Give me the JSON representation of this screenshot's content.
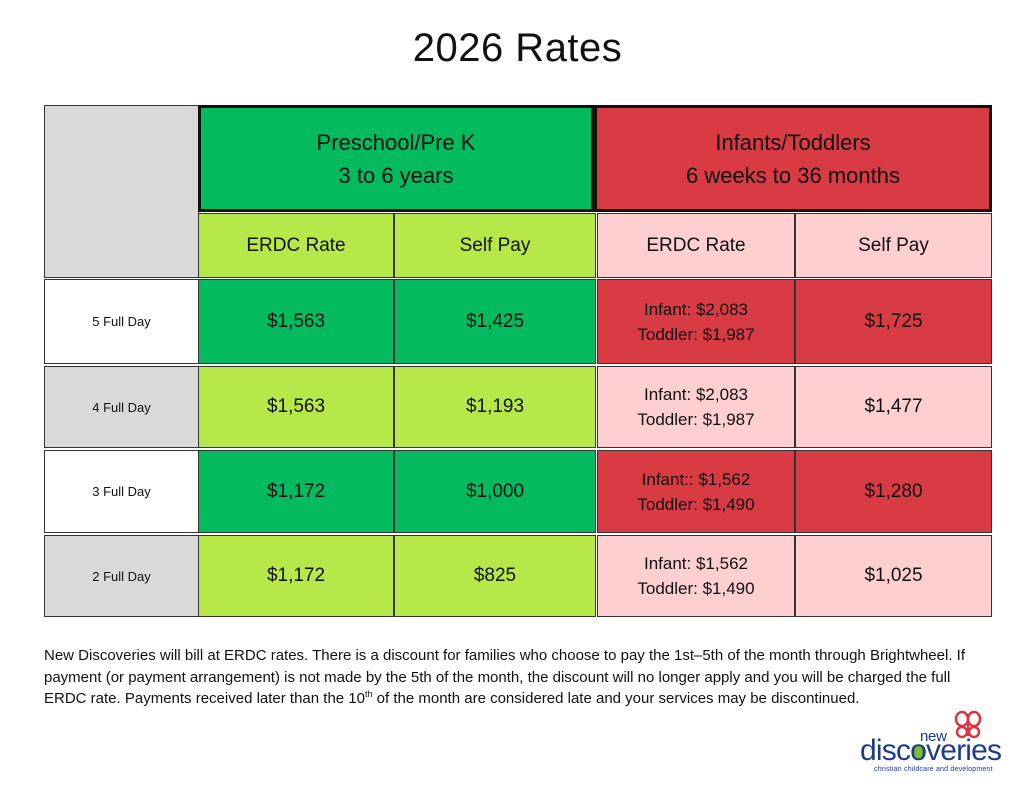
{
  "title": "2026 Rates",
  "groups": {
    "preschool": {
      "line1": "Preschool/Pre K",
      "line2": "3 to 6 years"
    },
    "infants": {
      "line1": "Infants/Toddlers",
      "line2": "6 weeks to 36 months"
    }
  },
  "subheaders": [
    "ERDC Rate",
    "Self Pay",
    "ERDC Rate",
    "Self Pay"
  ],
  "rows": [
    {
      "label": "5 Full Day",
      "pre_erdc": "$1,563",
      "pre_self": "$1,425",
      "inf_erdc_1": "Infant: $2,083",
      "inf_erdc_2": "Toddler: $1,987",
      "inf_self": "$1,725"
    },
    {
      "label": "4 Full Day",
      "pre_erdc": "$1,563",
      "pre_self": "$1,193",
      "inf_erdc_1": "Infant: $2,083",
      "inf_erdc_2": "Toddler: $1,987",
      "inf_self": "$1,477"
    },
    {
      "label": "3 Full Day",
      "pre_erdc": "$1,172",
      "pre_self": "$1,000",
      "inf_erdc_1": "Infant:: $1,562",
      "inf_erdc_2": "Toddler: $1,490",
      "inf_self": "$1,280"
    },
    {
      "label": "2 Full Day",
      "pre_erdc": "$1,172",
      "pre_self": "$825",
      "inf_erdc_1": "Infant: $1,562",
      "inf_erdc_2": "Toddler: $1,490",
      "inf_self": "$1,025"
    }
  ],
  "footnote": {
    "before": "New Discoveries will bill at ERDC rates. There is a discount for families who choose to pay the 1st–5th of the month through Brightwheel. If payment (or payment arrangement) is not made by the 5th of the month, the discount will no longer apply and you will be charged the full ERDC rate. Payments received later than the 10",
    "sup": "th",
    "after": " of the month are considered late and your services may be discontinued."
  },
  "logo": {
    "word_top": "new",
    "word_main": "discoveries",
    "tagline": "christian childcare and development",
    "icon": "butterfly-icon",
    "colors": {
      "navy": "#1f3a8a",
      "red": "#d9343f",
      "green": "#7cbf2a"
    }
  }
}
